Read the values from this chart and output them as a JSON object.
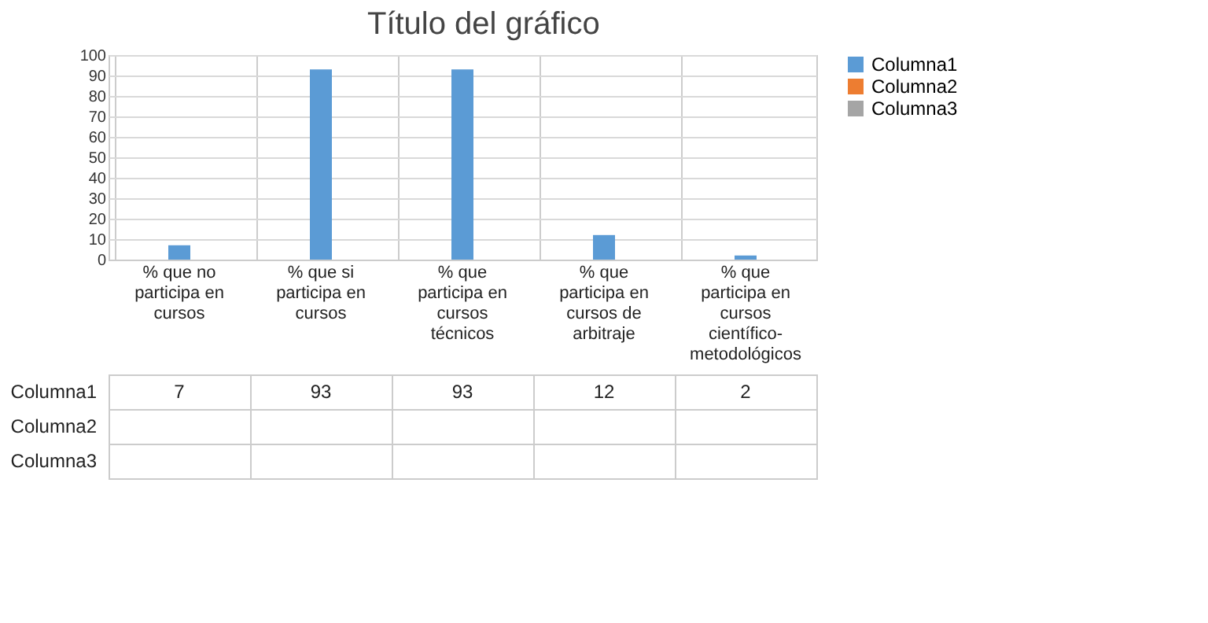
{
  "chart_data": {
    "type": "bar",
    "title": "Título del gráfico",
    "categories": [
      "% que no participa en cursos",
      "% que si participa en cursos",
      "% que participa en cursos técnicos",
      "% que participa en cursos de arbitraje",
      "% que participa en cursos científico-metodológicos"
    ],
    "series": [
      {
        "name": "Columna1",
        "color": "#5b9bd5",
        "values": [
          7,
          93,
          93,
          12,
          2
        ]
      },
      {
        "name": "Columna2",
        "color": "#ed7d31",
        "values": [
          null,
          null,
          null,
          null,
          null
        ]
      },
      {
        "name": "Columna3",
        "color": "#a5a5a5",
        "values": [
          null,
          null,
          null,
          null,
          null
        ]
      }
    ],
    "ylim": [
      0,
      100
    ],
    "yticks": [
      0,
      10,
      20,
      30,
      40,
      50,
      60,
      70,
      80,
      90,
      100
    ],
    "grid": "y",
    "legend": "right",
    "data_labels": true
  }
}
